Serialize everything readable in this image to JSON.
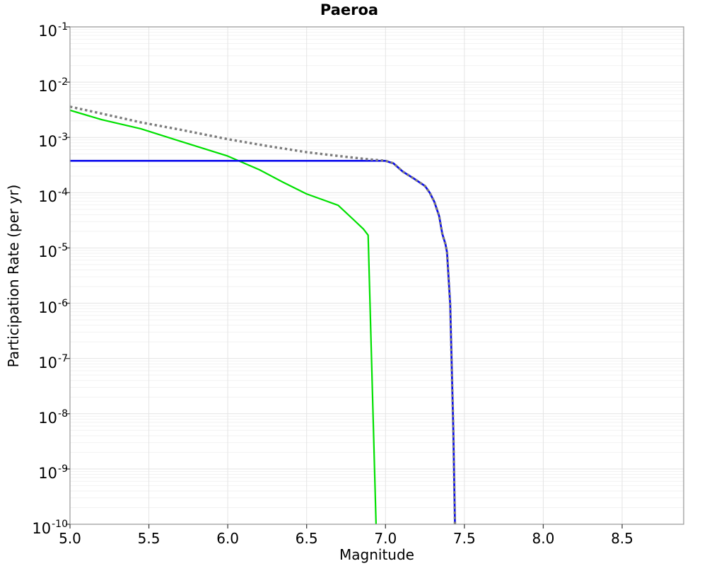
{
  "chart_data": {
    "type": "line",
    "title": "Paeroa",
    "xlabel": "Magnitude",
    "ylabel": "Participation Rate (per yr)",
    "grid": true,
    "legend": "none",
    "x_axis": {
      "min": 5.0,
      "max": 8.89,
      "tick_labels": [
        "5.0",
        "5.5",
        "6.0",
        "6.5",
        "7.0",
        "7.5",
        "8.0",
        "8.5"
      ],
      "tick_values": [
        5.0,
        5.5,
        6.0,
        6.5,
        7.0,
        7.5,
        8.0,
        8.5
      ],
      "grid_step": 0.5
    },
    "y_axis": {
      "scale": "log",
      "min_exponent": -10,
      "max_exponent": -1,
      "tick_exponents": [
        -1,
        -2,
        -3,
        -4,
        -5,
        -6,
        -7,
        -8,
        -9,
        -10
      ],
      "minor_gridlines": true
    },
    "colors": {
      "background": "#ffffff",
      "grid_major": "#e4e4e4",
      "grid_minor": "#f2f2f2",
      "border": "#9e9e9e",
      "tick": "#444444",
      "text": "#000000"
    },
    "series": [
      {
        "name": "green-solid-curve",
        "color": "#00e000",
        "line_style": "solid",
        "line_width": 2.2,
        "points": [
          [
            5.0,
            0.0031
          ],
          [
            5.2,
            0.0021
          ],
          [
            5.45,
            0.00143
          ],
          [
            5.7,
            0.00085
          ],
          [
            6.0,
            0.00046
          ],
          [
            6.2,
            0.00026
          ],
          [
            6.35,
            0.000155
          ],
          [
            6.5,
            9.5e-05
          ],
          [
            6.6,
            7.5e-05
          ],
          [
            6.7,
            5.9e-05
          ],
          [
            6.8,
            3.2e-05
          ],
          [
            6.86,
            2.2e-05
          ],
          [
            6.89,
            1.7e-05
          ],
          [
            6.94,
            1e-10
          ]
        ]
      },
      {
        "name": "blue-solid-curve",
        "color": "#0b0bee",
        "line_style": "solid",
        "line_width": 2.7,
        "points": [
          [
            5.0,
            0.000377
          ],
          [
            6.95,
            0.000377
          ],
          [
            7.0,
            0.000376
          ],
          [
            7.05,
            0.00034
          ],
          [
            7.11,
            0.00024
          ],
          [
            7.18,
            0.00018
          ],
          [
            7.25,
            0.000132
          ],
          [
            7.28,
            0.0001
          ],
          [
            7.31,
            6.8e-05
          ],
          [
            7.34,
            3.8e-05
          ],
          [
            7.36,
            1.8e-05
          ],
          [
            7.38,
            1.17e-05
          ],
          [
            7.39,
            8.3e-06
          ],
          [
            7.41,
            9.4e-07
          ],
          [
            7.43,
            5e-09
          ],
          [
            7.44,
            1e-10
          ]
        ]
      },
      {
        "name": "gray-dotted-curve",
        "color": "#7d7d7d",
        "line_style": "dotted",
        "line_width": 3.4,
        "points": [
          [
            5.0,
            0.0036
          ],
          [
            5.2,
            0.0027
          ],
          [
            5.45,
            0.00187
          ],
          [
            5.7,
            0.00138
          ],
          [
            6.0,
            0.00093
          ],
          [
            6.25,
            0.0007
          ],
          [
            6.5,
            0.00054
          ],
          [
            6.65,
            0.00048
          ],
          [
            6.8,
            0.00043
          ],
          [
            6.9,
            0.0004
          ],
          [
            6.97,
            0.000385
          ],
          [
            7.0,
            0.000377
          ],
          [
            7.05,
            0.00034
          ],
          [
            7.11,
            0.00024
          ],
          [
            7.18,
            0.00018
          ],
          [
            7.25,
            0.000132
          ],
          [
            7.28,
            0.0001
          ],
          [
            7.31,
            6.8e-05
          ],
          [
            7.34,
            3.8e-05
          ],
          [
            7.36,
            1.8e-05
          ],
          [
            7.38,
            1.17e-05
          ],
          [
            7.39,
            8.3e-06
          ],
          [
            7.41,
            9.4e-07
          ],
          [
            7.43,
            5e-09
          ],
          [
            7.44,
            1e-10
          ]
        ]
      }
    ]
  }
}
